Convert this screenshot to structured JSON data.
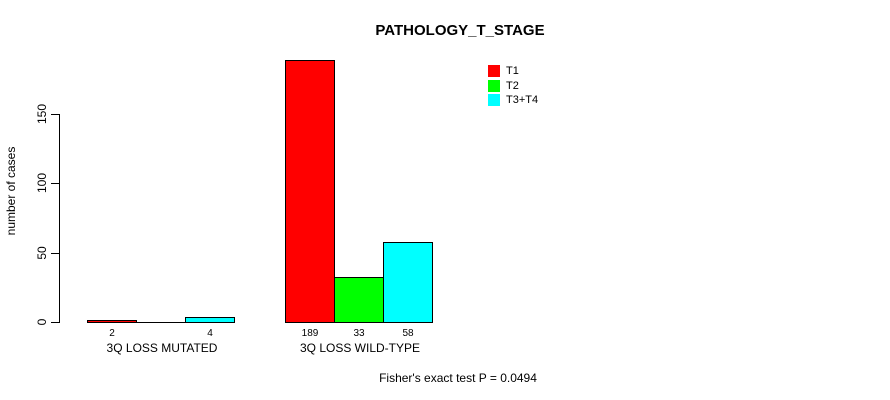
{
  "chart_data": {
    "type": "bar",
    "title": "PATHOLOGY_T_STAGE",
    "ylabel": "number of cases",
    "xlabel": "",
    "categories": [
      "3Q LOSS MUTATED",
      "3Q LOSS WILD-TYPE"
    ],
    "series": [
      {
        "name": "T1",
        "color": "#ff0000",
        "values": [
          2,
          189
        ]
      },
      {
        "name": "T2",
        "color": "#00ff00",
        "values": [
          0,
          33
        ]
      },
      {
        "name": "T3+T4",
        "color": "#00ffff",
        "values": [
          4,
          58
        ]
      }
    ],
    "value_labels": [
      [
        "2",
        "189"
      ],
      [
        "",
        "33"
      ],
      [
        "4",
        "58"
      ]
    ],
    "yticks": [
      0,
      50,
      100,
      150
    ],
    "ylim": [
      0,
      195
    ],
    "grid": false,
    "legend_position": "top-right",
    "bar_border_color": "#000000",
    "background_color": "#ffffff",
    "annotation": "Fisher's exact test P = 0.0494"
  }
}
